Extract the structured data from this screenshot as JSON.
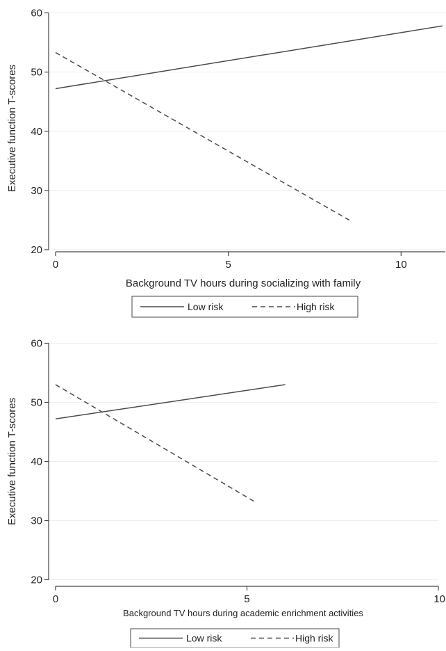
{
  "chart_data": [
    {
      "type": "line",
      "ylabel": "Executive function T-scores",
      "xlabel": "Background TV hours during socializing with family",
      "xlim": [
        0,
        11.3
      ],
      "ylim": [
        20,
        61
      ],
      "xticks": [
        0,
        5,
        10
      ],
      "yticks": [
        20,
        30,
        40,
        50,
        60
      ],
      "grid": true,
      "legend": "bottom",
      "series": [
        {
          "name": "Low risk",
          "style": "solid",
          "x": [
            0,
            11.2
          ],
          "y": [
            47.2,
            57.8
          ]
        },
        {
          "name": "High risk",
          "style": "dashed",
          "x": [
            0,
            8.5
          ],
          "y": [
            53.3,
            25.0
          ]
        }
      ]
    },
    {
      "type": "line",
      "ylabel": "Executive function T-scores",
      "xlabel": "Background TV hours during academic enrichment activities",
      "xlim": [
        0,
        10
      ],
      "ylim": [
        19,
        61
      ],
      "xticks": [
        0,
        5,
        10
      ],
      "yticks": [
        20,
        30,
        40,
        50,
        60
      ],
      "grid": true,
      "legend": "bottom",
      "series": [
        {
          "name": "Low risk",
          "style": "solid",
          "x": [
            0,
            6
          ],
          "y": [
            47.2,
            53.0
          ]
        },
        {
          "name": "High risk",
          "style": "dashed",
          "x": [
            0,
            5.2
          ],
          "y": [
            53.0,
            33.2
          ]
        }
      ]
    }
  ]
}
